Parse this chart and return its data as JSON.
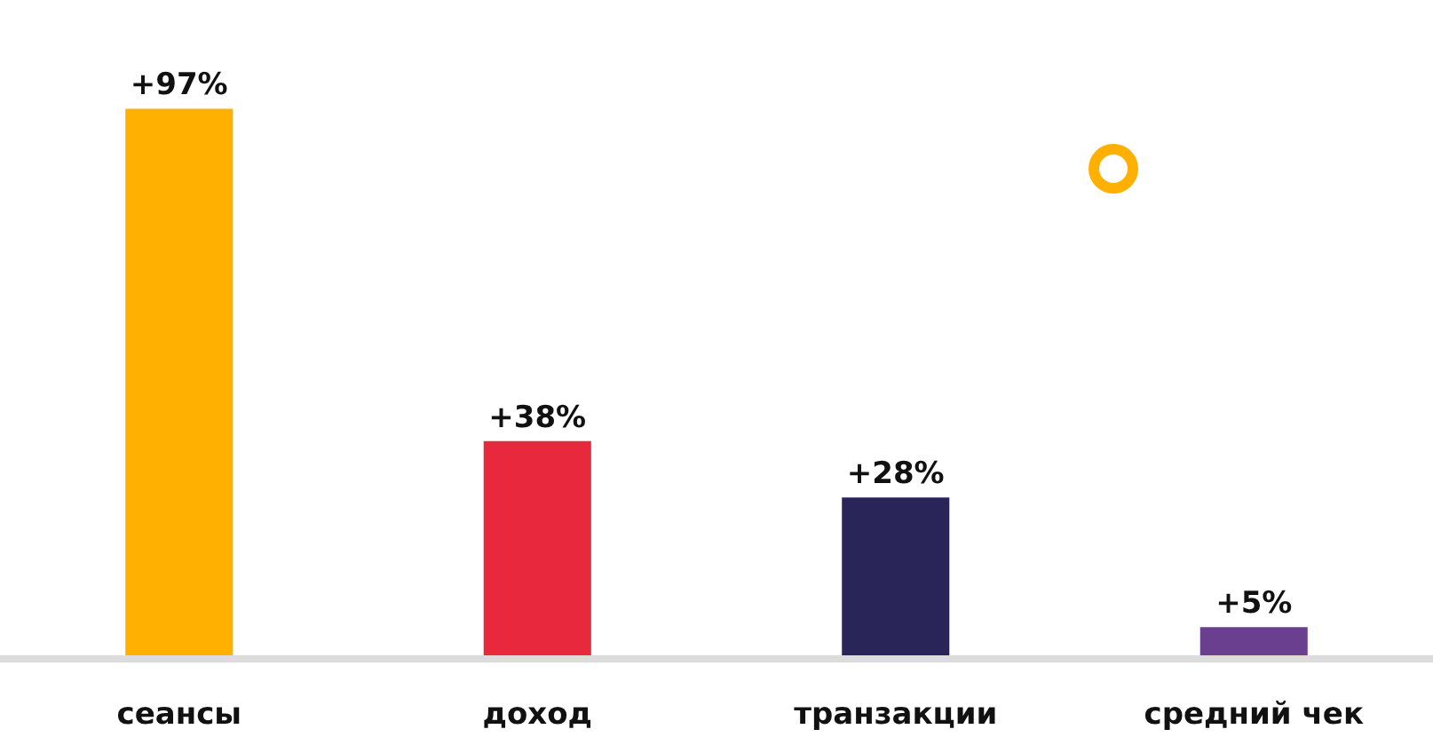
{
  "chart_data": {
    "type": "bar",
    "categories": [
      "сеансы",
      "доход",
      "транзакции",
      "средний чек"
    ],
    "values": [
      97,
      38,
      28,
      5
    ],
    "colors": [
      "#ffb000",
      "#e8283c",
      "#2a2558",
      "#6b3f8f"
    ],
    "value_labels": [
      "+97%",
      "+38%",
      "+28%",
      "+5%"
    ],
    "grid": false,
    "legend": false
  }
}
